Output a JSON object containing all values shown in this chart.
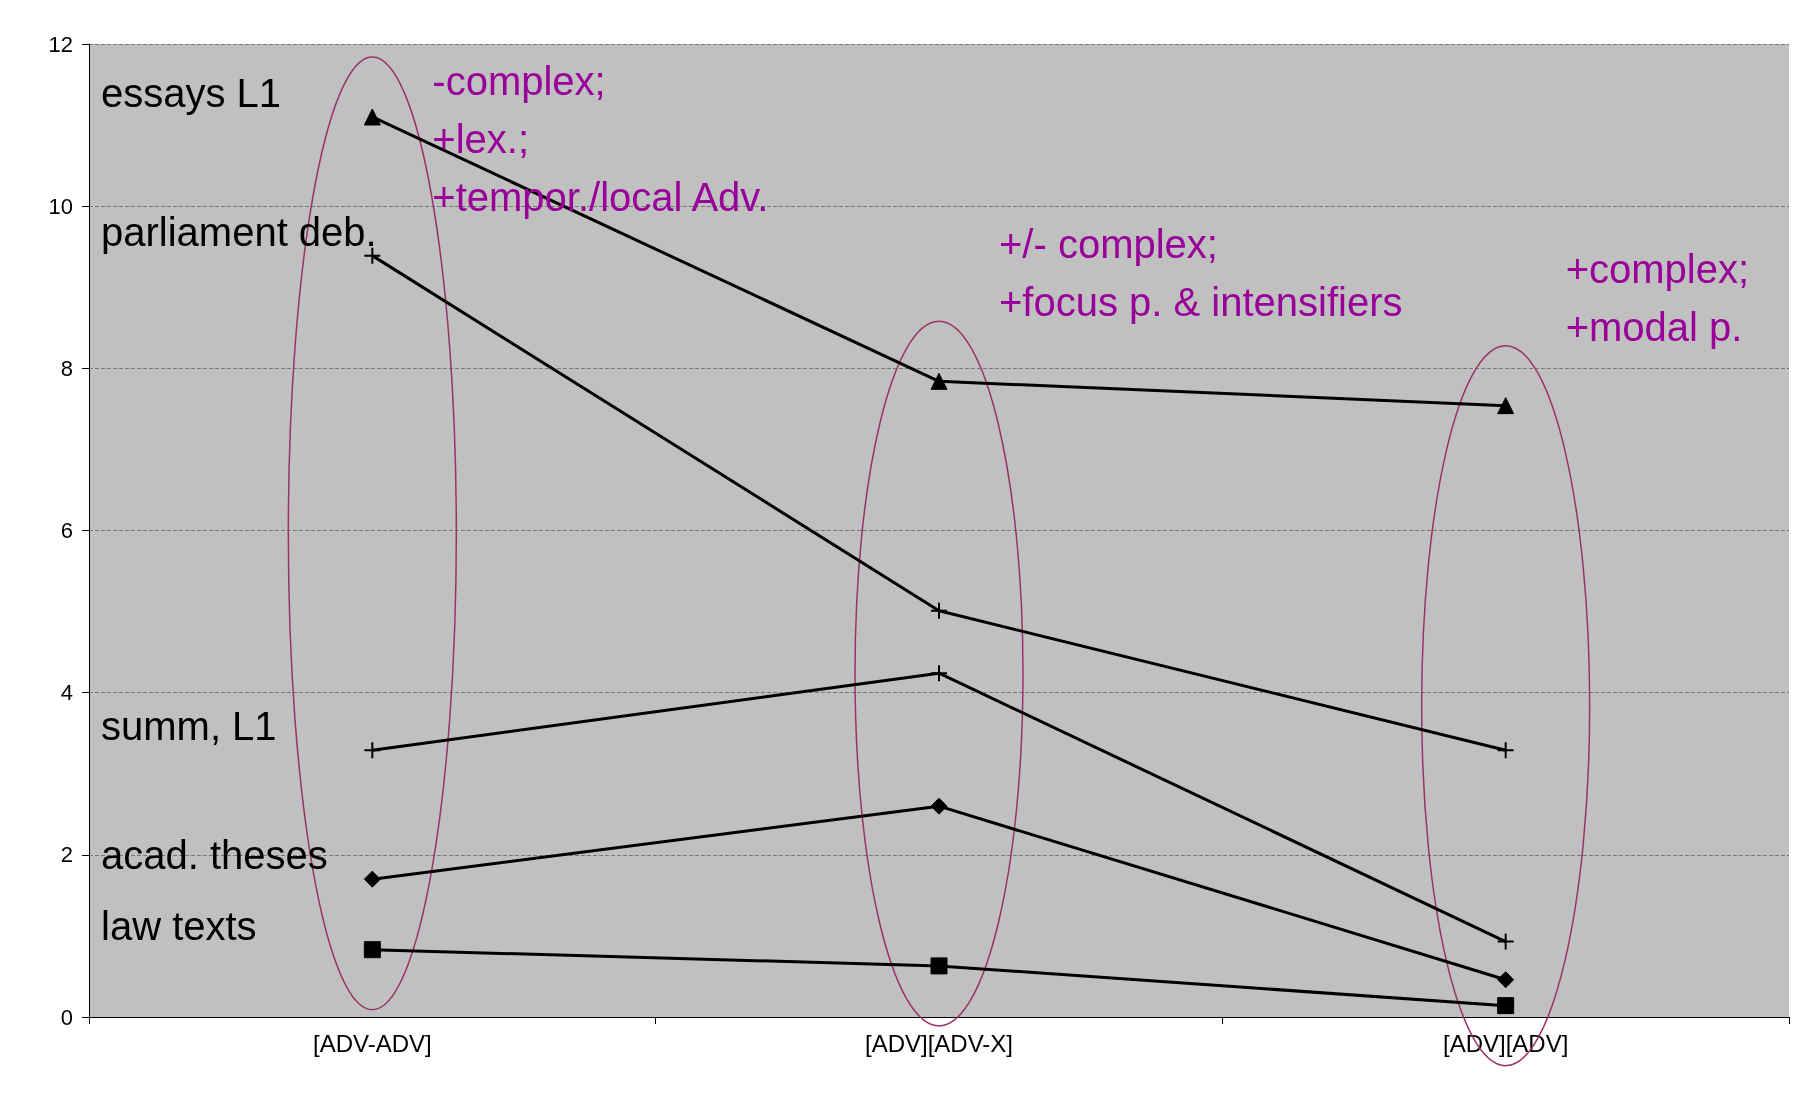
{
  "chart_data": {
    "type": "line",
    "categories": [
      "[ADV-ADV]",
      "[ADV][ADV-X]",
      "[ADV][ADV]"
    ],
    "series": [
      {
        "name": "essays L1",
        "color": "#000000",
        "marker": "triangle",
        "values": [
          11.1,
          7.84,
          7.54
        ]
      },
      {
        "name": "parliament deb.",
        "color": "#000000",
        "marker": "cross",
        "values": [
          9.39,
          5.01,
          3.29
        ]
      },
      {
        "name": "summ, L1",
        "color": "#000000",
        "marker": "cross",
        "values": [
          3.29,
          4.24,
          0.93
        ]
      },
      {
        "name": "acad. theses",
        "color": "#000000",
        "marker": "diamond",
        "values": [
          1.7,
          2.6,
          0.46
        ]
      },
      {
        "name": "law texts",
        "color": "#000000",
        "marker": "square",
        "values": [
          0.83,
          0.63,
          0.14
        ]
      }
    ],
    "annotations": [
      "-complex;\n+lex.;\n+tempor./local Adv.",
      "+/- complex;\n+focus p. & intensifiers",
      "+complex;\n+modal p."
    ],
    "ylim": [
      0,
      12
    ],
    "yticks": [
      0,
      2,
      4,
      6,
      8,
      10,
      12
    ],
    "grid": "y",
    "legend": false,
    "line_style": "solid"
  }
}
